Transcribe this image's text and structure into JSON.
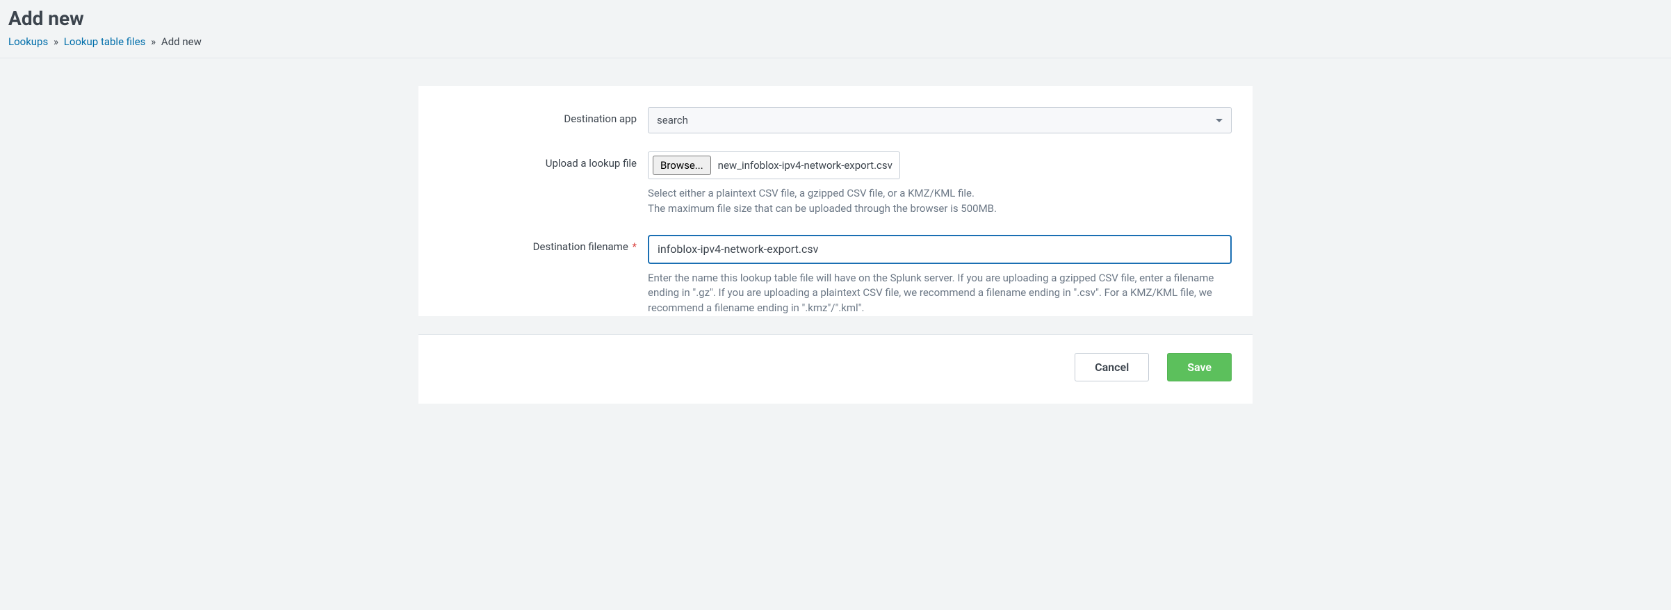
{
  "header": {
    "title": "Add new",
    "breadcrumb": {
      "items": [
        {
          "label": "Lookups",
          "link": true
        },
        {
          "label": "Lookup table files",
          "link": true
        },
        {
          "label": "Add new",
          "link": false
        }
      ],
      "separator": "»"
    }
  },
  "form": {
    "destination_app": {
      "label": "Destination app",
      "selected": "search"
    },
    "upload": {
      "label": "Upload a lookup file",
      "browse_button": "Browse...",
      "file_name": "new_infoblox-ipv4-network-export.csv",
      "help_line1": "Select either a plaintext CSV file, a gzipped CSV file, or a KMZ/KML file.",
      "help_line2": "The maximum file size that can be uploaded through the browser is 500MB."
    },
    "destination_filename": {
      "label": "Destination filename",
      "required_mark": "*",
      "value": "infoblox-ipv4-network-export.csv",
      "help": "Enter the name this lookup table file will have on the Splunk server. If you are uploading a gzipped CSV file, enter a filename ending in \".gz\". If you are uploading a plaintext CSV file, we recommend a filename ending in \".csv\". For a KMZ/KML file, we recommend a filename ending in \".kmz\"/\".kml\"."
    },
    "actions": {
      "cancel": "Cancel",
      "save": "Save"
    }
  },
  "colors": {
    "page_bg": "#f2f4f5",
    "panel_bg": "#ffffff",
    "text": "#3c444d",
    "link": "#006eaa",
    "muted": "#6b7785",
    "border": "#c3cbd4",
    "focus_border": "#1a6fb3",
    "required": "#d93f3c",
    "primary_btn": "#5cc05c"
  }
}
